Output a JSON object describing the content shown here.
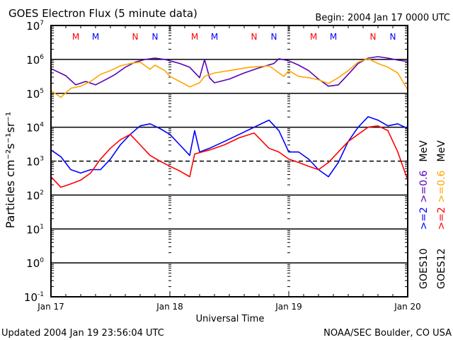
{
  "chart_data": {
    "type": "line",
    "title": "GOES Electron Flux (5 minute data)",
    "begin_label": "Begin: 2004 Jan 17 0000 UTC",
    "xlabel": "Universal Time",
    "ylabel": "Particles cm⁻²s⁻¹sr⁻¹",
    "x_unit": "hours since 2004 Jan 17 0000 UTC",
    "xlim": [
      0,
      72
    ],
    "x_ticks": [
      {
        "value": 0,
        "label": "Jan 17"
      },
      {
        "value": 24,
        "label": "Jan 18"
      },
      {
        "value": 48,
        "label": "Jan 19"
      },
      {
        "value": 72,
        "label": "Jan 20"
      }
    ],
    "y_scale": "log",
    "ylim_log10": [
      -1,
      7
    ],
    "y_ticks": [
      {
        "exp": 7,
        "base": "10",
        "sup": "7"
      },
      {
        "exp": 6,
        "base": "10",
        "sup": "6"
      },
      {
        "exp": 5,
        "base": "10",
        "sup": "5"
      },
      {
        "exp": 4,
        "base": "10",
        "sup": "4"
      },
      {
        "exp": 3,
        "base": "10",
        "sup": "3"
      },
      {
        "exp": 2,
        "base": "10",
        "sup": "2"
      },
      {
        "exp": 1,
        "base": "10",
        "sup": "1"
      },
      {
        "exp": 0,
        "base": "10",
        "sup": "0"
      },
      {
        "exp": -1,
        "base": "10",
        "sup": "-1"
      }
    ],
    "solid_gridlines_log10": [
      6,
      5,
      4,
      2,
      1,
      0
    ],
    "dashed_gridlines_log10": [
      3
    ],
    "markers": [
      {
        "label": "M",
        "hour": 5,
        "color": "#ff0000"
      },
      {
        "label": "M",
        "hour": 9,
        "color": "#0000ff"
      },
      {
        "label": "N",
        "hour": 17,
        "color": "#ff0000"
      },
      {
        "label": "N",
        "hour": 21,
        "color": "#0000ff"
      },
      {
        "label": "M",
        "hour": 29,
        "color": "#ff0000"
      },
      {
        "label": "M",
        "hour": 33,
        "color": "#0000ff"
      },
      {
        "label": "N",
        "hour": 41,
        "color": "#ff0000"
      },
      {
        "label": "N",
        "hour": 45,
        "color": "#0000ff"
      },
      {
        "label": "M",
        "hour": 53,
        "color": "#ff0000"
      },
      {
        "label": "M",
        "hour": 57,
        "color": "#0000ff"
      },
      {
        "label": "N",
        "hour": 65,
        "color": "#ff0000"
      },
      {
        "label": "N",
        "hour": 69,
        "color": "#0000ff"
      }
    ],
    "legend": {
      "placement": "right",
      "columns": [
        {
          "satellite": "GOES10",
          "low": ">=2",
          "high": ">=0.6",
          "unit": "MeV",
          "low_color": "#0000ff",
          "high_color": "#5a00b4"
        },
        {
          "satellite": "GOES12",
          "low": ">=2",
          "high": ">=0.6",
          "unit": "MeV",
          "low_color": "#ff0000",
          "high_color": "#ffa500"
        }
      ]
    },
    "series": [
      {
        "name": "GOES10 >=0.6 MeV",
        "color": "#5a00b4",
        "x": [
          0,
          3,
          5,
          7,
          9,
          11,
          13,
          15,
          17,
          19,
          21,
          23,
          24,
          26,
          28,
          30,
          31,
          32,
          33,
          36,
          39,
          42,
          45,
          46,
          48,
          50,
          52,
          54,
          56,
          58,
          60,
          62,
          64,
          66,
          68,
          70,
          72
        ],
        "log10_flux": [
          5.73,
          5.52,
          5.25,
          5.35,
          5.25,
          5.4,
          5.56,
          5.77,
          5.92,
          6.0,
          6.04,
          6.0,
          5.96,
          5.88,
          5.77,
          5.46,
          6.0,
          5.46,
          5.31,
          5.42,
          5.6,
          5.75,
          5.88,
          6.02,
          5.96,
          5.83,
          5.67,
          5.42,
          5.21,
          5.25,
          5.56,
          5.88,
          6.04,
          6.08,
          6.04,
          5.98,
          5.94
        ]
      },
      {
        "name": "GOES12 >=0.6 MeV",
        "color": "#ffa500",
        "x": [
          0,
          2,
          4,
          6,
          8,
          10,
          12,
          14,
          16,
          18,
          20,
          21,
          23,
          24,
          26,
          28,
          30,
          31,
          33,
          36,
          40,
          44,
          47,
          48,
          50,
          52,
          54,
          56,
          58,
          60,
          62,
          64,
          66,
          68,
          70,
          72
        ],
        "log10_flux": [
          5.08,
          4.88,
          5.15,
          5.21,
          5.35,
          5.56,
          5.67,
          5.81,
          5.88,
          5.92,
          5.71,
          5.83,
          5.67,
          5.5,
          5.35,
          5.19,
          5.31,
          5.5,
          5.6,
          5.67,
          5.77,
          5.81,
          5.5,
          5.67,
          5.5,
          5.46,
          5.4,
          5.29,
          5.46,
          5.67,
          5.92,
          6.02,
          5.88,
          5.77,
          5.6,
          5.1
        ]
      },
      {
        "name": "GOES10 >=2 MeV",
        "color": "#0000ff",
        "x": [
          0,
          2,
          4,
          6,
          8,
          10,
          12,
          14,
          16,
          18,
          20,
          22,
          24,
          26,
          28,
          29,
          30,
          32,
          35,
          38,
          41,
          44,
          46,
          48,
          50,
          52,
          54,
          56,
          58,
          60,
          62,
          64,
          66,
          68,
          70,
          72
        ],
        "log10_flux": [
          3.33,
          3.13,
          2.75,
          2.65,
          2.75,
          2.75,
          3.06,
          3.48,
          3.79,
          4.04,
          4.1,
          3.96,
          3.79,
          3.48,
          3.17,
          3.9,
          3.27,
          3.38,
          3.58,
          3.79,
          4.0,
          4.21,
          3.9,
          3.27,
          3.27,
          3.06,
          2.75,
          2.54,
          2.96,
          3.58,
          4.0,
          4.31,
          4.21,
          4.04,
          4.1,
          3.96
        ]
      },
      {
        "name": "GOES12 >=2 MeV",
        "color": "#ff0000",
        "x": [
          0,
          2,
          4,
          6,
          8,
          10,
          12,
          14,
          16,
          18,
          20,
          22,
          24,
          26,
          28,
          29,
          30,
          32,
          35,
          38,
          41,
          44,
          46,
          48,
          50,
          52,
          54,
          56,
          58,
          60,
          62,
          64,
          66,
          68,
          70,
          72
        ],
        "log10_flux": [
          2.54,
          2.23,
          2.33,
          2.44,
          2.65,
          3.06,
          3.38,
          3.63,
          3.79,
          3.48,
          3.17,
          3.0,
          2.85,
          2.71,
          2.54,
          3.21,
          3.25,
          3.33,
          3.48,
          3.69,
          3.83,
          3.38,
          3.27,
          3.06,
          2.96,
          2.85,
          2.75,
          2.96,
          3.27,
          3.58,
          3.79,
          4.0,
          4.04,
          3.9,
          3.27,
          2.44
        ]
      }
    ]
  },
  "footer": {
    "updated": "Updated 2004 Jan 19 23:56:04 UTC",
    "credit": "NOAA/SEC Boulder, CO USA"
  }
}
